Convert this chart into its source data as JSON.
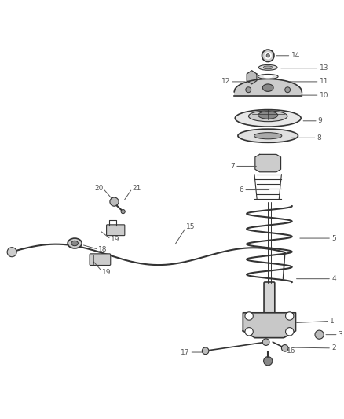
{
  "background_color": "#ffffff",
  "line_color": "#333333",
  "label_color": "#555555",
  "fig_width": 4.38,
  "fig_height": 5.33,
  "dpi": 100
}
